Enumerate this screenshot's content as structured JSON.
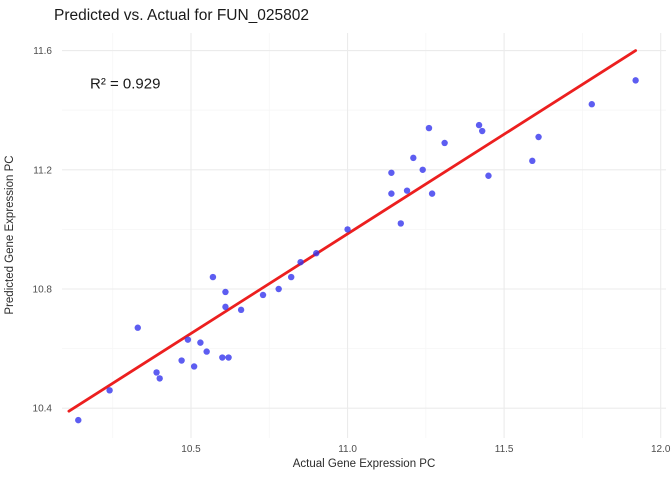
{
  "figure": {
    "title": "Predicted vs. Actual for FUN_025802"
  },
  "chart_data": {
    "type": "scatter",
    "title": "Predicted vs. Actual for FUN_025802",
    "xlabel": "Actual Gene Expression PC",
    "ylabel": "Predicted Gene Expression PC",
    "annotation": {
      "text": "R² = 0.929",
      "x": 10.29,
      "y": 11.49
    },
    "r_squared": 0.929,
    "xlim": [
      10.088,
      12.017
    ],
    "ylim": [
      10.3,
      11.659
    ],
    "grid": true,
    "legend_position": "none",
    "x_ticks": {
      "major": [
        10.5,
        11.0,
        11.5,
        12.0
      ],
      "labels": [
        "10.5",
        "11.0",
        "11.5",
        "12.0"
      ],
      "minor": [
        10.25,
        10.75,
        11.25,
        11.75
      ]
    },
    "y_ticks": {
      "major": [
        10.4,
        10.8,
        11.2,
        11.6
      ],
      "labels": [
        "10.4",
        "10.8",
        "11.2",
        "11.6"
      ],
      "minor": [
        10.6,
        11.0,
        11.4
      ]
    },
    "points": [
      [
        10.14,
        10.36
      ],
      [
        10.24,
        10.46
      ],
      [
        10.33,
        10.67
      ],
      [
        10.39,
        10.52
      ],
      [
        10.4,
        10.5
      ],
      [
        10.47,
        10.56
      ],
      [
        10.49,
        10.63
      ],
      [
        10.51,
        10.54
      ],
      [
        10.53,
        10.62
      ],
      [
        10.55,
        10.59
      ],
      [
        10.57,
        10.84
      ],
      [
        10.6,
        10.57
      ],
      [
        10.62,
        10.57
      ],
      [
        10.61,
        10.74
      ],
      [
        10.61,
        10.79
      ],
      [
        10.66,
        10.73
      ],
      [
        10.73,
        10.78
      ],
      [
        10.78,
        10.8
      ],
      [
        10.82,
        10.84
      ],
      [
        10.85,
        10.89
      ],
      [
        10.9,
        10.92
      ],
      [
        11.0,
        11.0
      ],
      [
        11.14,
        11.19
      ],
      [
        11.14,
        11.12
      ],
      [
        11.17,
        11.02
      ],
      [
        11.19,
        11.13
      ],
      [
        11.21,
        11.24
      ],
      [
        11.24,
        11.2
      ],
      [
        11.26,
        11.34
      ],
      [
        11.27,
        11.12
      ],
      [
        11.31,
        11.29
      ],
      [
        11.42,
        11.35
      ],
      [
        11.43,
        11.33
      ],
      [
        11.45,
        11.18
      ],
      [
        11.59,
        11.23
      ],
      [
        11.61,
        11.31
      ],
      [
        11.78,
        11.42
      ],
      [
        11.92,
        11.5
      ]
    ],
    "trend_line": {
      "x1": 10.11,
      "y1": 10.39,
      "x2": 11.92,
      "y2": 11.6
    },
    "colors": {
      "point": "#3434ee",
      "trend": "#ec1f1f",
      "grid_major": "#ebebeb",
      "grid_minor": "#f6f6f6",
      "tick_label": "#4d4d4d",
      "text": "#1a1a1a",
      "background": "#ffffff"
    }
  }
}
